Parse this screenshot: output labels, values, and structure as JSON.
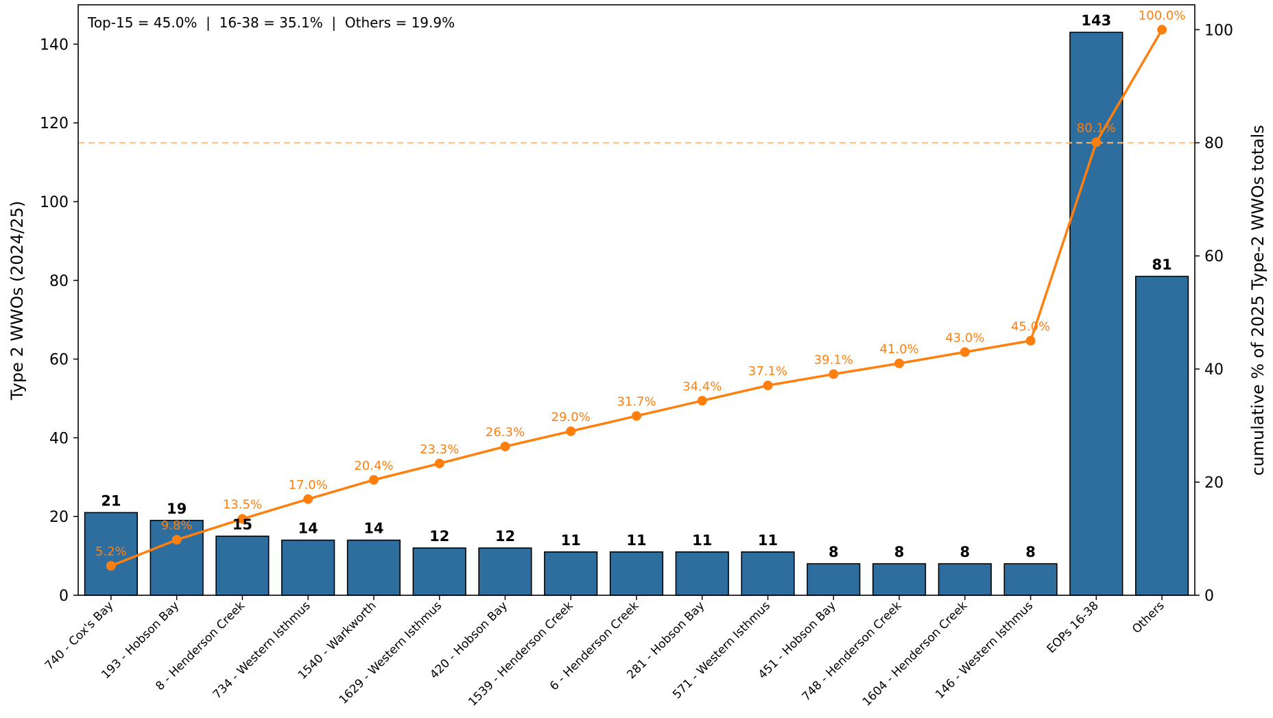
{
  "chart_data": {
    "type": "bar",
    "annotation": "Top-15 = 45.0%  |  16-38 = 35.1%  |  Others = 19.9%",
    "ylabel": "Type 2 WWOs (2024/25)",
    "y2label": "cumulative % of 2025 Type-2 WWOs totals",
    "ylim": [
      0,
      150
    ],
    "y2lim": [
      0,
      104.4
    ],
    "yticks": [
      0,
      20,
      40,
      60,
      80,
      100,
      120,
      140
    ],
    "y2ticks": [
      0,
      20,
      40,
      60,
      80,
      100
    ],
    "categories": [
      "740 - Cox's Bay",
      "193 - Hobson Bay",
      "8 - Henderson Creek",
      "734 - Western Isthmus",
      "1540 - Warkworth",
      "1629 - Western Isthmus",
      "420 - Hobson Bay",
      "1539 - Henderson Creek",
      "6 - Henderson Creek",
      "281 - Hobson Bay",
      "571 - Western Isthmus",
      "451 - Hobson Bay",
      "748 - Henderson Creek",
      "1604 - Henderson Creek",
      "146 - Western Isthmus",
      "EOPs 16-38",
      "Others"
    ],
    "series": [
      {
        "type": "bar",
        "values": [
          21,
          19,
          15,
          14,
          14,
          12,
          12,
          11,
          11,
          11,
          11,
          8,
          8,
          8,
          8,
          143,
          81
        ],
        "labels": [
          "21",
          "19",
          "15",
          "14",
          "14",
          "12",
          "12",
          "11",
          "11",
          "11",
          "11",
          "8",
          "8",
          "8",
          "8",
          "143",
          "81"
        ],
        "color": "#2e6e9e"
      },
      {
        "type": "line",
        "axis": "right",
        "values": [
          5.2,
          9.8,
          13.5,
          17.0,
          20.4,
          23.3,
          26.3,
          29.0,
          31.7,
          34.4,
          37.1,
          39.1,
          41.0,
          43.0,
          45.0,
          80.1,
          100.0
        ],
        "labels": [
          "5.2%",
          "9.8%",
          "13.5%",
          "17.0%",
          "20.4%",
          "23.3%",
          "26.3%",
          "29.0%",
          "31.7%",
          "34.4%",
          "37.1%",
          "39.1%",
          "41.0%",
          "43.0%",
          "45.0%",
          "80.1%",
          "100.0%"
        ],
        "color": "#ff7f0e"
      }
    ],
    "reference_line": {
      "axis": "right",
      "value": 80,
      "style": "dashed",
      "color": "#ffbb78"
    },
    "grid": false
  }
}
